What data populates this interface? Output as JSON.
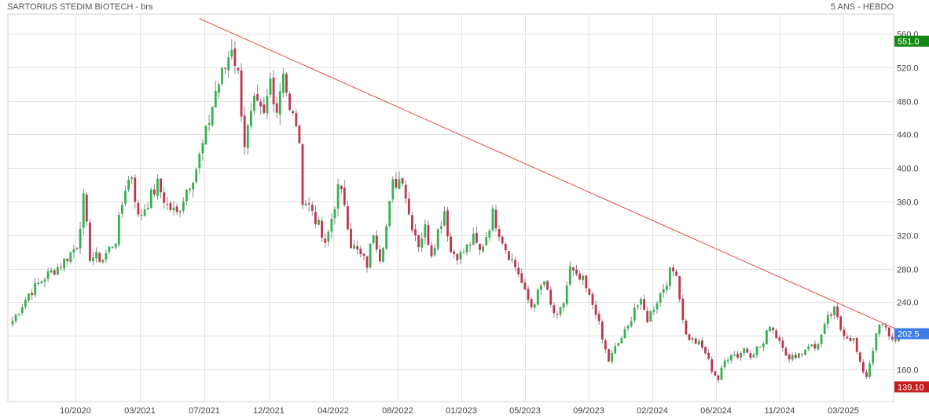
{
  "chart_data": {
    "type": "candlestick",
    "title": "SARTORIUS STEDIM BIOTECH - brs",
    "subtitle": "5 ANS - HEBDO",
    "ylim": [
      125,
      575
    ],
    "yticks": [
      160,
      200,
      240,
      280,
      320,
      360,
      400,
      440,
      480,
      520,
      560
    ],
    "ytick_labels": [
      "160.0",
      "",
      "240.0",
      "280.0",
      "320.0",
      "360.0",
      "400.0",
      "440.0",
      "480.0",
      "520.0",
      "560.0"
    ],
    "xticks": [
      "10/2020",
      "03/2021",
      "07/2021",
      "12/2021",
      "04/2022",
      "08/2022",
      "01/2023",
      "05/2023",
      "09/2023",
      "02/2024",
      "06/2024",
      "11/2024",
      "03/2025"
    ],
    "grid": true,
    "badges": [
      {
        "label": "551.0",
        "value": 551.0,
        "color": "#138a13"
      },
      {
        "label": "202.5",
        "value": 202.5,
        "color": "#3b7be8"
      },
      {
        "label": "139.10",
        "value": 139.1,
        "color": "#c81d1d"
      }
    ],
    "trendline": {
      "from": {
        "week": 58,
        "value": 578
      },
      "to": {
        "week": 276,
        "value": 205
      },
      "color": "#ee4444"
    },
    "colors": {
      "up": "#33b34f",
      "down": "#c0344f"
    },
    "anchors": [
      [
        0,
        218
      ],
      [
        5,
        250
      ],
      [
        10,
        270
      ],
      [
        15,
        285
      ],
      [
        20,
        308
      ],
      [
        22,
        362
      ],
      [
        24,
        295
      ],
      [
        28,
        292
      ],
      [
        32,
        315
      ],
      [
        35,
        378
      ],
      [
        37,
        392
      ],
      [
        39,
        340
      ],
      [
        42,
        360
      ],
      [
        45,
        380
      ],
      [
        48,
        355
      ],
      [
        51,
        345
      ],
      [
        54,
        375
      ],
      [
        57,
        400
      ],
      [
        60,
        440
      ],
      [
        63,
        492
      ],
      [
        66,
        520
      ],
      [
        68,
        547
      ],
      [
        70,
        510
      ],
      [
        72,
        430
      ],
      [
        75,
        475
      ],
      [
        78,
        460
      ],
      [
        80,
        505
      ],
      [
        82,
        470
      ],
      [
        84,
        520
      ],
      [
        86,
        465
      ],
      [
        88,
        455
      ],
      [
        89,
        420
      ],
      [
        90,
        365
      ],
      [
        93,
        350
      ],
      [
        95,
        330
      ],
      [
        97,
        305
      ],
      [
        99,
        340
      ],
      [
        101,
        375
      ],
      [
        103,
        360
      ],
      [
        105,
        310
      ],
      [
        107,
        300
      ],
      [
        110,
        285
      ],
      [
        112,
        325
      ],
      [
        114,
        295
      ],
      [
        116,
        330
      ],
      [
        118,
        380
      ],
      [
        121,
        390
      ],
      [
        123,
        345
      ],
      [
        126,
        310
      ],
      [
        128,
        328
      ],
      [
        130,
        300
      ],
      [
        132,
        325
      ],
      [
        134,
        350
      ],
      [
        136,
        300
      ],
      [
        139,
        296
      ],
      [
        141,
        305
      ],
      [
        143,
        315
      ],
      [
        145,
        300
      ],
      [
        147,
        320
      ],
      [
        149,
        345
      ],
      [
        151,
        325
      ],
      [
        153,
        305
      ],
      [
        155,
        290
      ],
      [
        157,
        275
      ],
      [
        159,
        250
      ],
      [
        161,
        235
      ],
      [
        163,
        250
      ],
      [
        165,
        265
      ],
      [
        167,
        235
      ],
      [
        169,
        220
      ],
      [
        171,
        240
      ],
      [
        173,
        280
      ],
      [
        175,
        268
      ],
      [
        177,
        265
      ],
      [
        179,
        245
      ],
      [
        181,
        230
      ],
      [
        183,
        195
      ],
      [
        185,
        170
      ],
      [
        187,
        185
      ],
      [
        189,
        198
      ],
      [
        191,
        210
      ],
      [
        193,
        235
      ],
      [
        195,
        238
      ],
      [
        197,
        220
      ],
      [
        199,
        235
      ],
      [
        202,
        258
      ],
      [
        204,
        275
      ],
      [
        206,
        278
      ],
      [
        207,
        245
      ],
      [
        209,
        200
      ],
      [
        211,
        195
      ],
      [
        213,
        190
      ],
      [
        215,
        180
      ],
      [
        217,
        160
      ],
      [
        219,
        148
      ],
      [
        221,
        170
      ],
      [
        223,
        180
      ],
      [
        225,
        176
      ],
      [
        227,
        185
      ],
      [
        229,
        178
      ],
      [
        231,
        185
      ],
      [
        233,
        190
      ],
      [
        235,
        215
      ],
      [
        237,
        200
      ],
      [
        239,
        190
      ],
      [
        241,
        170
      ],
      [
        243,
        178
      ],
      [
        245,
        180
      ],
      [
        247,
        190
      ],
      [
        249,
        185
      ],
      [
        251,
        200
      ],
      [
        253,
        220
      ],
      [
        255,
        230
      ],
      [
        257,
        208
      ],
      [
        259,
        200
      ],
      [
        261,
        195
      ],
      [
        263,
        165
      ],
      [
        265,
        152
      ],
      [
        267,
        185
      ],
      [
        269,
        212
      ],
      [
        271,
        208
      ],
      [
        273,
        195
      ],
      [
        275,
        200
      ],
      [
        276,
        202.5
      ]
    ]
  }
}
